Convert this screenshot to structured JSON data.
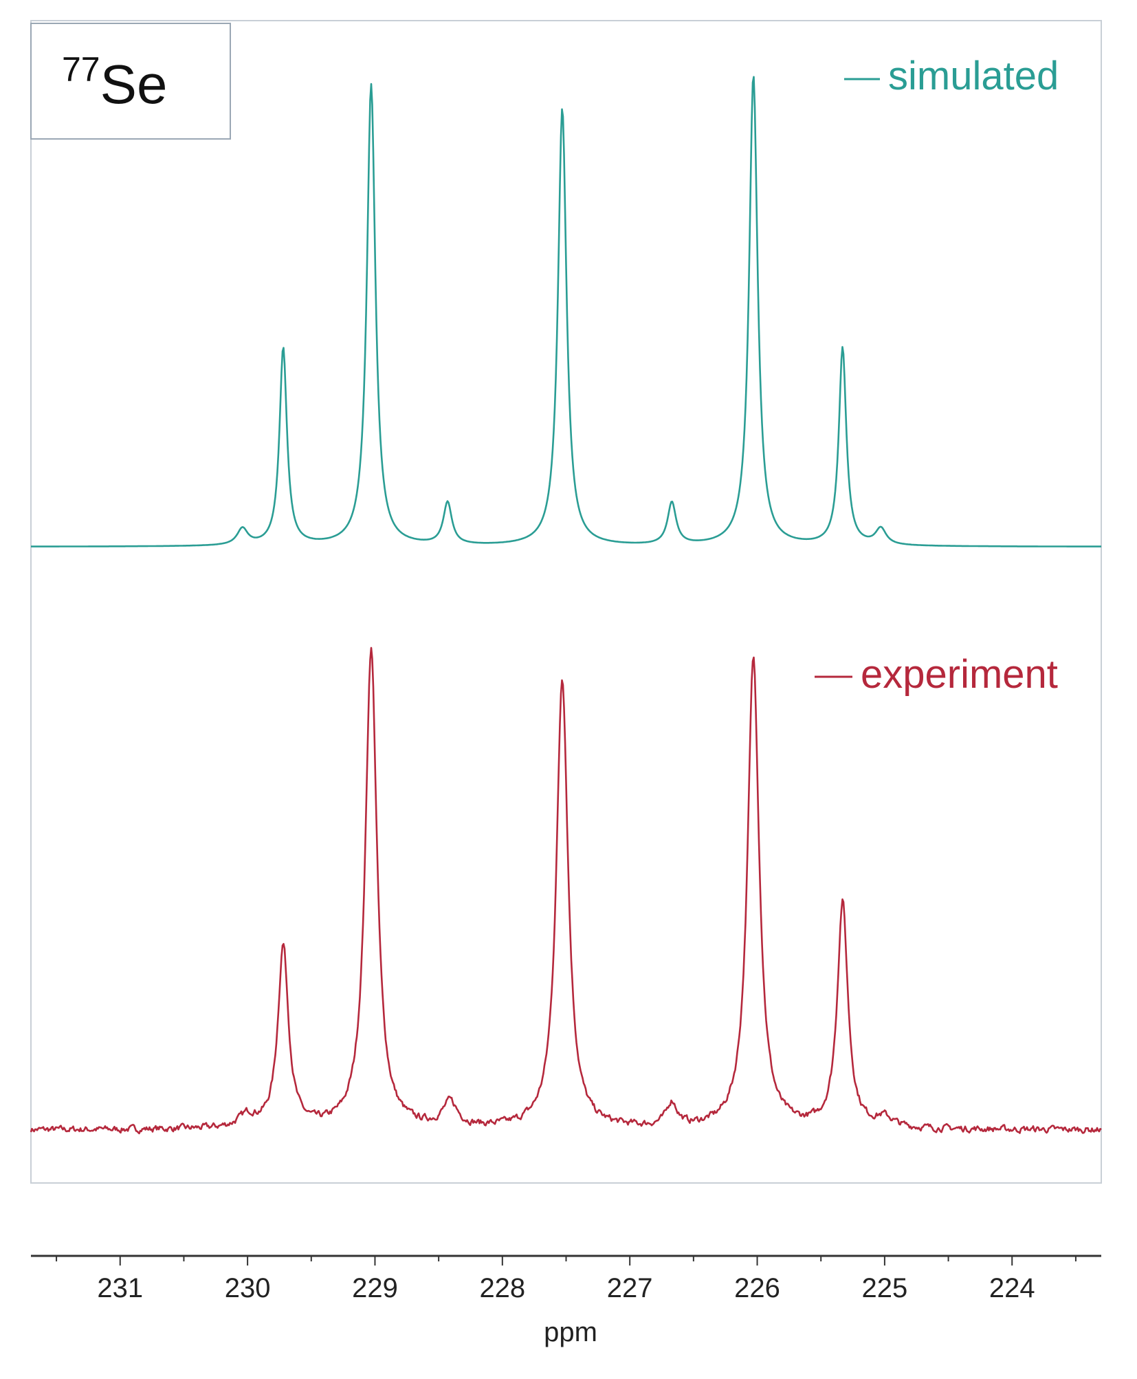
{
  "chart_data": {
    "type": "line",
    "nucleus_label": {
      "mass": "77",
      "symbol": "Se"
    },
    "xlabel": "ppm",
    "xlim": [
      231.7,
      223.3
    ],
    "x_ticks": [
      231,
      230,
      229,
      228,
      227,
      226,
      225,
      224
    ],
    "x_tick_labels": [
      "231",
      "230",
      "229",
      "228",
      "227",
      "226",
      "225",
      "224"
    ],
    "legend_placement": "top-right of each trace",
    "series": [
      {
        "name": "simulated",
        "color": "#2a9d94",
        "baseline": 0,
        "peaks": [
          {
            "ppm": 230.04,
            "height": 0.035,
            "width": 0.05
          },
          {
            "ppm": 229.72,
            "height": 0.42,
            "width": 0.035
          },
          {
            "ppm": 229.03,
            "height": 0.98,
            "width": 0.04
          },
          {
            "ppm": 228.43,
            "height": 0.09,
            "width": 0.04
          },
          {
            "ppm": 227.53,
            "height": 0.93,
            "width": 0.04
          },
          {
            "ppm": 226.67,
            "height": 0.09,
            "width": 0.04
          },
          {
            "ppm": 226.03,
            "height": 1.0,
            "width": 0.04
          },
          {
            "ppm": 225.33,
            "height": 0.42,
            "width": 0.035
          },
          {
            "ppm": 225.03,
            "height": 0.035,
            "width": 0.05
          }
        ]
      },
      {
        "name": "experiment",
        "color": "#b5283c",
        "baseline": 0,
        "noise": 0.012,
        "peaks": [
          {
            "ppm": 230.0,
            "height": 0.025,
            "width": 0.08
          },
          {
            "ppm": 229.72,
            "height": 0.38,
            "width": 0.05
          },
          {
            "ppm": 229.03,
            "height": 1.0,
            "width": 0.055
          },
          {
            "ppm": 228.41,
            "height": 0.05,
            "width": 0.07
          },
          {
            "ppm": 227.53,
            "height": 0.94,
            "width": 0.055
          },
          {
            "ppm": 226.67,
            "height": 0.05,
            "width": 0.05
          },
          {
            "ppm": 226.03,
            "height": 0.98,
            "width": 0.055
          },
          {
            "ppm": 225.33,
            "height": 0.47,
            "width": 0.05
          },
          {
            "ppm": 225.0,
            "height": 0.02,
            "width": 0.08
          }
        ]
      }
    ]
  }
}
